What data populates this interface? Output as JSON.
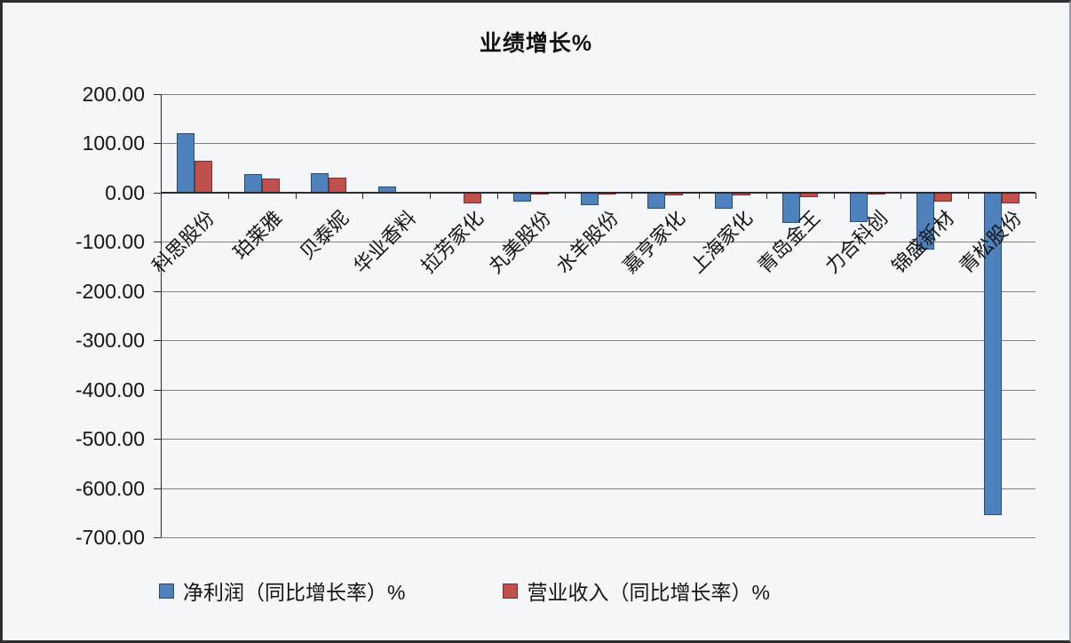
{
  "window": {
    "background": "#f4f6f9",
    "frame_border_color": "#2e2e2e",
    "grid_color": "#808080",
    "axis_color": "#2b2b2b",
    "text_color": "#141414"
  },
  "chart_data": {
    "type": "bar",
    "title": "业绩增长%",
    "categories": [
      "科思股份",
      "珀莱雅",
      "贝泰妮",
      "华业香料",
      "拉芳家化",
      "丸美股份",
      "水羊股份",
      "嘉亨家化",
      "上海家化",
      "青岛金王",
      "力合科创",
      "锦盛新材",
      "青松股份"
    ],
    "series": [
      {
        "name": "净利润（同比增长率）%",
        "color": "#4F81BD",
        "border_color": "#2c4d6e",
        "values": [
          120,
          37,
          39,
          13,
          2,
          -18,
          -25,
          -32,
          -33,
          -62,
          -60,
          -115,
          -655
        ]
      },
      {
        "name": "营业收入（同比增长率）%",
        "color": "#C0504D",
        "border_color": "#7f2e2c",
        "values": [
          65,
          28,
          31,
          1,
          -21,
          -3,
          -2,
          -5,
          -5,
          -10,
          -3,
          -18,
          -22
        ]
      }
    ],
    "ylim": [
      -700,
      200
    ],
    "ytick_step": 100,
    "ytick_labels": [
      "200.00",
      "100.00",
      "0.00",
      "-100.00",
      "-200.00",
      "-300.00",
      "-400.00",
      "-500.00",
      "-600.00",
      "-700.00"
    ],
    "grid": true,
    "legend_position": "bottom",
    "xlabel": "",
    "ylabel": ""
  }
}
